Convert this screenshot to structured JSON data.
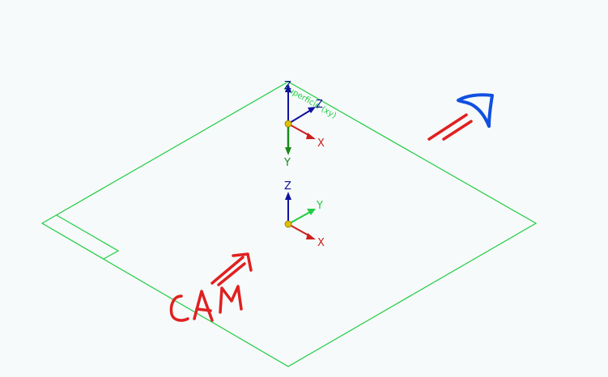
{
  "viewport": {
    "background_color": "#f6fafa"
  },
  "plane": {
    "name": "Superficie (xy)",
    "edge_color": "#22cc44"
  },
  "triad_top": {
    "z_label": "Z",
    "y_label": "Y",
    "x_label": "X",
    "icon": "coordinate-triad-icon"
  },
  "triad_origin": {
    "z_label": "Z",
    "y_label": "Y",
    "x_label": "X",
    "icon": "coordinate-triad-icon"
  },
  "colors": {
    "z_axis": "#1010a0",
    "y_axis_top": "#1a8a1a",
    "y_axis_origin": "#22cc44",
    "x_axis": "#cc2020",
    "origin_point": "#e0c000",
    "annotation_red": "#e02020",
    "annotation_blue": "#1050e0"
  },
  "annotations": {
    "handwritten_text": "CAM",
    "red_arrow_icon": "hand-drawn-arrow-icon",
    "blue_arrow_icon": "hand-drawn-arrow-icon"
  }
}
